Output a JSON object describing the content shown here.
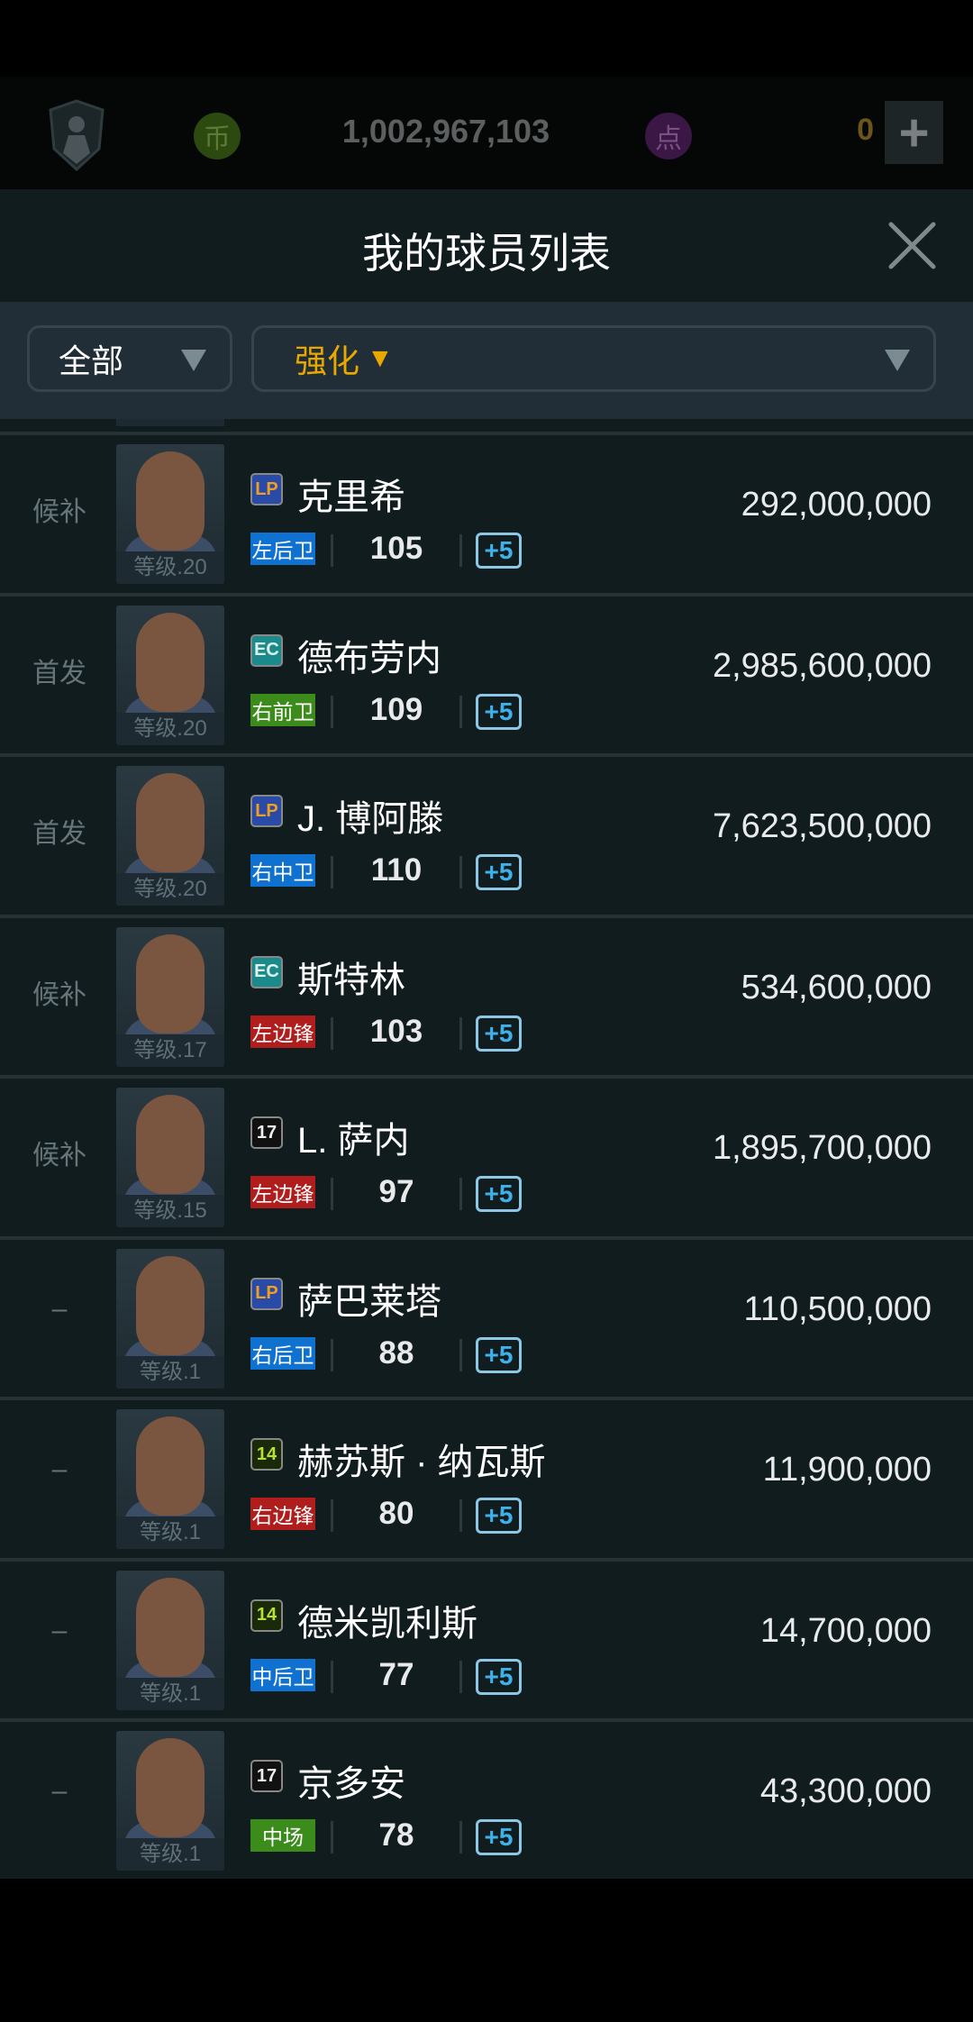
{
  "topbar": {
    "coin_icon": "币",
    "coins": "1,002,967,103",
    "point_icon": "点",
    "points": "0",
    "add_label": "+"
  },
  "header": {
    "title": "我的球员列表",
    "close_icon": "close-icon"
  },
  "filters": {
    "category": "全部",
    "sort": "强化",
    "sort_arrow": "▼",
    "sort_color": "#e8a800"
  },
  "colors": {
    "defender": "#1072d0",
    "midfielder": "#3c8c1c",
    "forward": "#b01d1d"
  },
  "season_badges": {
    "LP": {
      "label": "LP",
      "bg": "#2a4aa8",
      "fg": "#f0a020"
    },
    "EC": {
      "label": "EC",
      "bg": "#1a8a8a",
      "fg": "#e0f5f0"
    },
    "17": {
      "label": "17",
      "bg": "#111",
      "fg": "#eee"
    },
    "14": {
      "label": "14",
      "bg": "#1a2a08",
      "fg": "#b8e030"
    }
  },
  "players": [
    {
      "status": "候补",
      "level": "等级.20",
      "season": "LP",
      "name": "克里希",
      "position": "左后卫",
      "role": "defender",
      "ovr": "105",
      "upgrade": "+5",
      "price": "292,000,000"
    },
    {
      "status": "首发",
      "level": "等级.20",
      "season": "EC",
      "name": "德布劳内",
      "position": "右前卫",
      "role": "midfielder",
      "ovr": "109",
      "upgrade": "+5",
      "price": "2,985,600,000"
    },
    {
      "status": "首发",
      "level": "等级.20",
      "season": "LP",
      "name": "J. 博阿滕",
      "position": "右中卫",
      "role": "defender",
      "ovr": "110",
      "upgrade": "+5",
      "price": "7,623,500,000"
    },
    {
      "status": "候补",
      "level": "等级.17",
      "season": "EC",
      "name": "斯特林",
      "position": "左边锋",
      "role": "forward",
      "ovr": "103",
      "upgrade": "+5",
      "price": "534,600,000"
    },
    {
      "status": "候补",
      "level": "等级.15",
      "season": "17",
      "name": "L. 萨内",
      "position": "左边锋",
      "role": "forward",
      "ovr": "97",
      "upgrade": "+5",
      "price": "1,895,700,000"
    },
    {
      "status": "–",
      "level": "等级.1",
      "season": "LP",
      "name": "萨巴莱塔",
      "position": "右后卫",
      "role": "defender",
      "ovr": "88",
      "upgrade": "+5",
      "price": "110,500,000"
    },
    {
      "status": "–",
      "level": "等级.1",
      "season": "14",
      "name": "赫苏斯 · 纳瓦斯",
      "position": "右边锋",
      "role": "forward",
      "ovr": "80",
      "upgrade": "+5",
      "price": "11,900,000"
    },
    {
      "status": "–",
      "level": "等级.1",
      "season": "14",
      "name": "德米凯利斯",
      "position": "中后卫",
      "role": "defender",
      "ovr": "77",
      "upgrade": "+5",
      "price": "14,700,000"
    },
    {
      "status": "–",
      "level": "等级.1",
      "season": "17",
      "name": "京多安",
      "position": "中场",
      "role": "midfielder",
      "ovr": "78",
      "upgrade": "+5",
      "price": "43,300,000"
    }
  ]
}
